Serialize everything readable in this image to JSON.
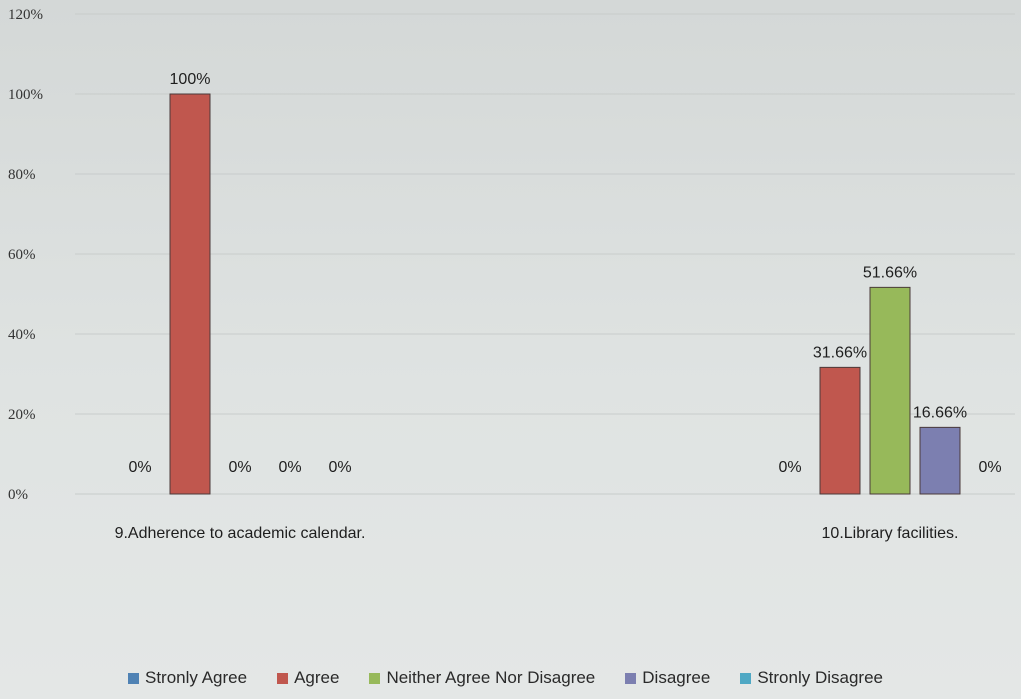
{
  "chart_data": {
    "type": "bar",
    "title": "",
    "xlabel": "",
    "ylabel": "",
    "ylim": [
      0,
      120
    ],
    "yticks": [
      "0%",
      "20%",
      "40%",
      "60%",
      "80%",
      "100%",
      "120%"
    ],
    "categories": [
      "9.Adherence to academic calendar.",
      "10.Library facilities."
    ],
    "series": [
      {
        "name": "Stronly Agree",
        "color": "#4f82b4",
        "values": [
          0,
          0
        ],
        "labels": [
          "0%",
          "0%"
        ]
      },
      {
        "name": "Agree",
        "color": "#c0574e",
        "values": [
          100,
          31.66
        ],
        "labels": [
          "100%",
          "31.66%"
        ]
      },
      {
        "name": "Neither Agree Nor Disagree",
        "color": "#97b95a",
        "values": [
          0,
          51.66
        ],
        "labels": [
          "0%",
          "51.66%"
        ]
      },
      {
        "name": "Disagree",
        "color": "#7c7fb0",
        "values": [
          0,
          16.66
        ],
        "labels": [
          "0%",
          "16.66%"
        ]
      },
      {
        "name": "Stronly Disagree",
        "color": "#4fa8c4",
        "values": [
          0,
          0
        ],
        "labels": [
          "0%",
          "0%"
        ]
      }
    ],
    "legend_position": "bottom",
    "grid": true
  }
}
